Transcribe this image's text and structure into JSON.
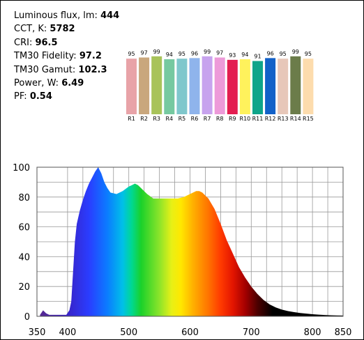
{
  "metrics": {
    "flux_label": "Luminous flux, lm:",
    "flux_value": "444",
    "cct_label": "CCT, K:",
    "cct_value": "5782",
    "cri_label": "CRI:",
    "cri_value": "96.5",
    "tm30f_label": "TM30 Fidelity:",
    "tm30f_value": "97.2",
    "tm30g_label": "TM30 Gamut:",
    "tm30g_value": "102.3",
    "power_label": "Power, W:",
    "power_value": "6.49",
    "pf_label": "PF:",
    "pf_value": "0.54"
  },
  "cri_bars": {
    "labels": [
      "R1",
      "R2",
      "R3",
      "R4",
      "R5",
      "R6",
      "R7",
      "R8",
      "R9",
      "R10",
      "R11",
      "R12",
      "R13",
      "R14",
      "R15"
    ],
    "values": [
      95,
      97,
      99,
      94,
      95,
      96,
      99,
      97,
      93,
      94,
      91,
      96,
      95,
      99,
      95
    ],
    "colors": [
      "#e8a3a8",
      "#c9a77d",
      "#a8c35a",
      "#76c9a0",
      "#7fc7cc",
      "#8fb4ec",
      "#c7a3ee",
      "#ed9ad9",
      "#e31d50",
      "#fff25c",
      "#0fa58a",
      "#1261c8",
      "#e7c7b9",
      "#6b7c4a",
      "#fddcad"
    ]
  },
  "chart_data": {
    "type": "area",
    "xlabel": "",
    "ylabel": "",
    "xlim": [
      350,
      850
    ],
    "ylim": [
      0,
      100
    ],
    "xticks": [
      350,
      400,
      500,
      600,
      700,
      800,
      850
    ],
    "yticks": [
      0,
      20,
      40,
      60,
      80,
      100
    ],
    "grid": true,
    "x": [
      355,
      360,
      365,
      370,
      380,
      390,
      398,
      403,
      406,
      409,
      412,
      415,
      420,
      425,
      430,
      435,
      440,
      445,
      450,
      455,
      460,
      465,
      470,
      480,
      490,
      500,
      505,
      510,
      515,
      520,
      525,
      530,
      540,
      550,
      560,
      570,
      580,
      590,
      600,
      605,
      610,
      615,
      620,
      625,
      630,
      640,
      650,
      660,
      670,
      680,
      690,
      700,
      710,
      720,
      730,
      740,
      750,
      760,
      770,
      780,
      790,
      800,
      810,
      820,
      830,
      840,
      850
    ],
    "values": [
      1,
      4,
      2,
      1,
      1,
      1,
      1,
      4,
      10,
      30,
      50,
      62,
      71,
      78,
      84,
      89,
      93,
      97,
      100,
      96,
      90,
      86,
      83,
      82,
      84,
      87,
      88,
      89,
      88,
      86,
      84,
      82,
      79,
      79,
      79,
      79,
      79,
      80,
      82,
      83,
      84,
      84,
      83,
      81,
      79,
      72,
      62,
      51,
      42,
      33,
      26,
      20,
      15,
      11,
      8,
      6,
      4.5,
      3.5,
      2.8,
      2.2,
      1.8,
      1.4,
      1.1,
      0.9,
      0.7,
      0.6,
      0.5
    ]
  }
}
